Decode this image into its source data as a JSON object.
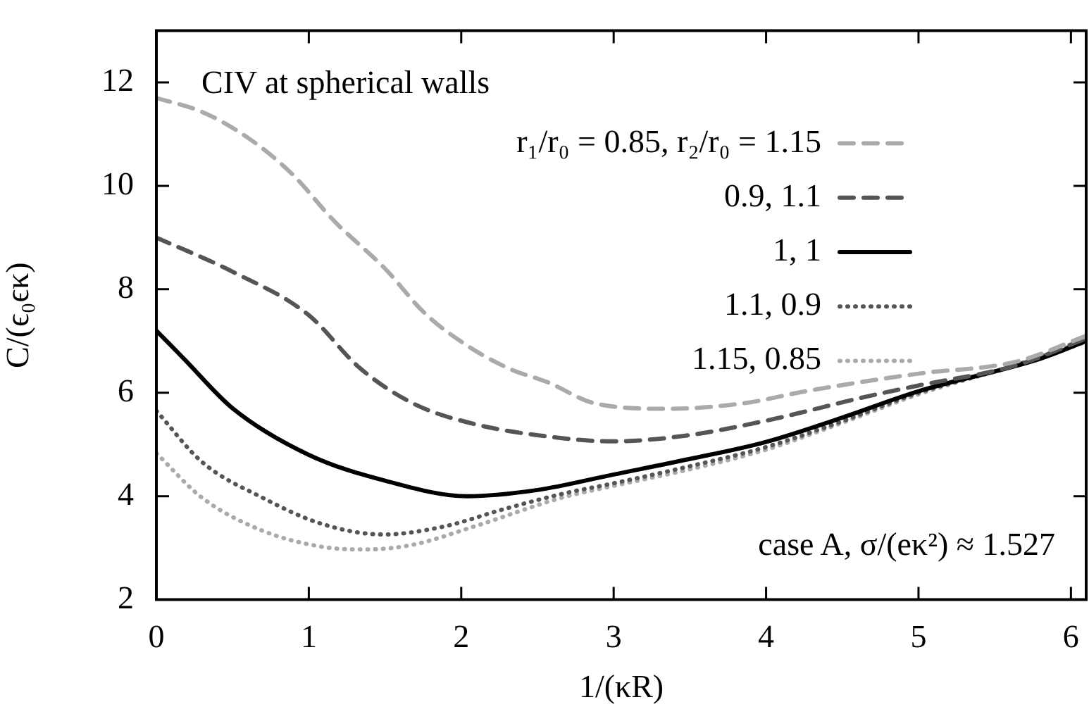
{
  "chart_data": {
    "type": "line",
    "xlabel": "1/(κR)",
    "ylabel": "C/(ϵ₀ϵκ)",
    "legend_title": "CIV at spherical walls",
    "legend": "top right",
    "marker": "none",
    "grid": false,
    "xlim": [
      0,
      6.1
    ],
    "ylim": [
      2,
      13
    ],
    "xticks": [
      0,
      1,
      2,
      3,
      4,
      5,
      6
    ],
    "yticks": [
      2,
      4,
      6,
      8,
      10,
      12
    ],
    "annotations": [
      "case A, σ/(eκ²) ≈ 1.527"
    ],
    "series": [
      {
        "name": "r₁/r₀ = 0.85, r₂/r₀ = 1.15",
        "color": "#aaaaaa",
        "line_style": "dashed",
        "x": [
          0,
          0.3,
          0.61,
          0.89,
          1.17,
          1.5,
          1.76,
          2.04,
          2.32,
          2.57,
          2.87,
          3.35,
          3.86,
          4.26,
          5,
          5.64,
          6.1
        ],
        "values": [
          11.7,
          11.43,
          10.91,
          10.23,
          9.31,
          8.4,
          7.54,
          6.91,
          6.46,
          6.2,
          5.8,
          5.69,
          5.8,
          6.03,
          6.37,
          6.6,
          7.1
        ]
      },
      {
        "name": "0.9, 1.1",
        "color": "#555555",
        "line_style": "dashed",
        "x": [
          0,
          0.5,
          1,
          1.33,
          1.68,
          2.08,
          2.67,
          2.99,
          3.47,
          4,
          4.65,
          5,
          5.64,
          6.1
        ],
        "values": [
          9.0,
          8.34,
          7.5,
          6.49,
          5.8,
          5.4,
          5.12,
          5.06,
          5.17,
          5.46,
          5.92,
          6.14,
          6.53,
          7.05
        ]
      },
      {
        "name": "1, 1",
        "color": "#000000",
        "line_style": "solid",
        "x": [
          0,
          0.18,
          0.5,
          1,
          1.5,
          2.04,
          2.5,
          3,
          3.5,
          4,
          4.5,
          5,
          5.8,
          6.1
        ],
        "values": [
          7.2,
          6.66,
          5.7,
          4.8,
          4.3,
          4.0,
          4.12,
          4.42,
          4.72,
          5.05,
          5.52,
          6.03,
          6.66,
          7.0
        ]
      },
      {
        "name": "1.1, 0.9",
        "color": "#555555",
        "line_style": "dotted",
        "x": [
          0,
          0.3,
          0.69,
          1.09,
          1.49,
          1.88,
          2.28,
          2.67,
          3,
          3.5,
          4,
          4.5,
          5,
          5.6,
          6.1
        ],
        "values": [
          5.65,
          4.66,
          3.98,
          3.46,
          3.26,
          3.41,
          3.75,
          4.05,
          4.25,
          4.58,
          4.95,
          5.45,
          6.0,
          6.5,
          7.0
        ]
      },
      {
        "name": "1.15, 0.85",
        "color": "#aaaaaa",
        "line_style": "dotted",
        "x": [
          0,
          0.3,
          0.69,
          1.09,
          1.37,
          1.68,
          2.08,
          2.67,
          3,
          3.5,
          4,
          4.5,
          5,
          5.6,
          6.1
        ],
        "values": [
          4.83,
          3.97,
          3.34,
          3.02,
          2.97,
          3.06,
          3.41,
          3.98,
          4.2,
          4.52,
          4.9,
          5.42,
          5.97,
          6.5,
          6.98
        ]
      }
    ]
  }
}
